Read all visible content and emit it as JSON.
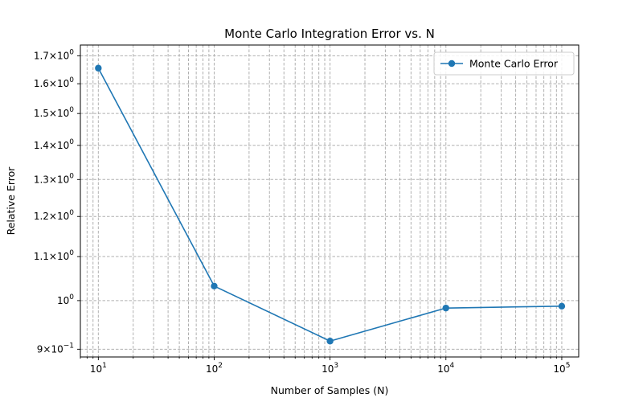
{
  "chart_data": {
    "type": "line",
    "title": "Monte Carlo Integration Error vs. N",
    "xlabel": "Number of Samples (N)",
    "ylabel": "Relative Error",
    "xscale": "log",
    "yscale": "log",
    "xlim": [
      7,
      140000
    ],
    "ylim": [
      0.885,
      1.74
    ],
    "grid": "both, major and minor, dashed",
    "legend": "top-right",
    "series": [
      {
        "name": "Monte Carlo Error",
        "color": "#1f77b4",
        "marker": "circle",
        "x": [
          10,
          100,
          1000,
          10000,
          100000
        ],
        "y": [
          1.655,
          1.032,
          0.916,
          0.984,
          0.988
        ]
      }
    ],
    "x_ticks": [
      {
        "value": 10,
        "base": "10",
        "exp": "1"
      },
      {
        "value": 100,
        "base": "10",
        "exp": "2"
      },
      {
        "value": 1000,
        "base": "10",
        "exp": "3"
      },
      {
        "value": 10000,
        "base": "10",
        "exp": "4"
      },
      {
        "value": 100000,
        "base": "10",
        "exp": "5"
      }
    ],
    "y_ticks": [
      {
        "value": 0.9,
        "mant": "9",
        "base": "10",
        "exp": "−1"
      },
      {
        "value": 1.0,
        "mant": "",
        "base": "10",
        "exp": "0"
      },
      {
        "value": 1.1,
        "mant": "1.1",
        "base": "10",
        "exp": "0"
      },
      {
        "value": 1.2,
        "mant": "1.2",
        "base": "10",
        "exp": "0"
      },
      {
        "value": 1.3,
        "mant": "1.3",
        "base": "10",
        "exp": "0"
      },
      {
        "value": 1.4,
        "mant": "1.4",
        "base": "10",
        "exp": "0"
      },
      {
        "value": 1.5,
        "mant": "1.5",
        "base": "10",
        "exp": "0"
      },
      {
        "value": 1.6,
        "mant": "1.6",
        "base": "10",
        "exp": "0"
      },
      {
        "value": 1.7,
        "mant": "1.7",
        "base": "10",
        "exp": "0"
      }
    ]
  }
}
